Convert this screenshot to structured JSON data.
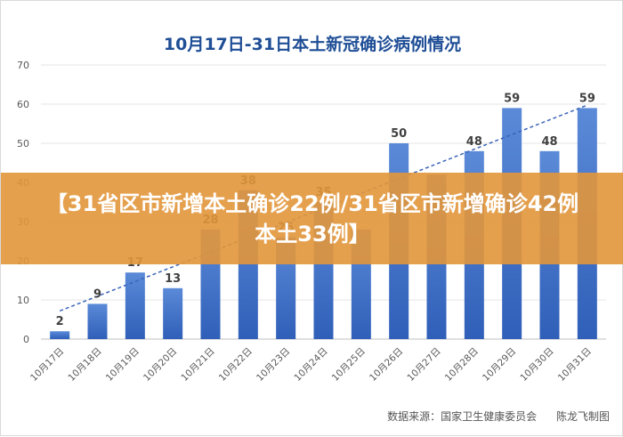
{
  "chart_data": {
    "type": "bar",
    "title": "10月17日-31日本土新冠确诊病例情况",
    "categories": [
      "10月17日",
      "10月18日",
      "10月19日",
      "10月20日",
      "10月21日",
      "10月22日",
      "10月23日",
      "10月24日",
      "10月25日",
      "10月26日",
      "10月27日",
      "10月28日",
      "10月29日",
      "10月30日",
      "10月31日"
    ],
    "values": [
      2,
      9,
      17,
      13,
      28,
      38,
      26,
      35,
      28,
      50,
      42,
      48,
      59,
      48,
      59
    ],
    "data_labels": [
      "2",
      "9",
      "17",
      "13",
      "28",
      "38",
      "26",
      "35",
      "",
      "50",
      "",
      "48",
      "59",
      "48",
      "59"
    ],
    "ylim": [
      0,
      70
    ],
    "yticks": [
      0,
      10,
      20,
      30,
      40,
      50,
      60,
      70
    ],
    "grid": true,
    "trendline": true,
    "bar_color": "#3c6fc8",
    "trend_color": "#3b64b8"
  },
  "banner": {
    "text": "【31省区市新增本土确诊22例/31省区市新增确诊42例本土33例】"
  },
  "footer": {
    "source": "数据来源：国家卫生健康委员会",
    "author": "陈龙飞制图"
  }
}
